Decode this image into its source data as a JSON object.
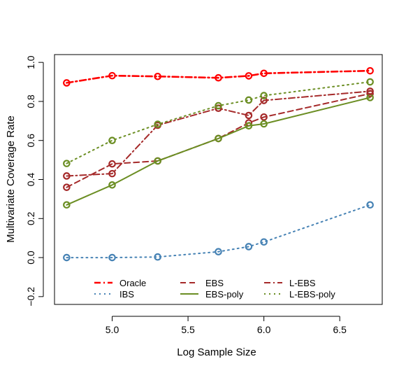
{
  "chart_data": {
    "type": "line",
    "title": "",
    "xlabel": "Log Sample Size",
    "ylabel": "Multivariate Coverage Rate",
    "xlim": [
      4.62,
      6.78
    ],
    "ylim": [
      -0.24,
      1.04
    ],
    "xticks": [
      5.0,
      5.5,
      6.0,
      6.5
    ],
    "xtick_labels": [
      "5.0",
      "5.5",
      "6.0",
      "6.5"
    ],
    "yticks": [
      -0.2,
      0.0,
      0.2,
      0.4,
      0.6,
      0.8,
      1.0
    ],
    "ytick_labels": [
      "−0.2",
      "0.0",
      "0.2",
      "0.4",
      "0.6",
      "0.8",
      "1.0"
    ],
    "x": [
      4.7,
      5.0,
      5.3,
      5.7,
      5.9,
      6.0,
      6.7
    ],
    "grid": false,
    "legend_position": "bottom",
    "series": [
      {
        "name": "Oracle",
        "color": "#ff0000",
        "dash": "dashdot",
        "width": 2.6,
        "values": [
          0.895,
          0.932,
          0.928,
          0.921,
          0.931,
          0.944,
          0.957
        ]
      },
      {
        "name": "IBS",
        "color": "#4682b4",
        "dash": "dotted",
        "width": 2,
        "values": [
          0.0,
          0.0,
          0.003,
          0.03,
          0.056,
          0.08,
          0.27
        ]
      },
      {
        "name": "EBS",
        "color": "#a52a2a",
        "dash": "dashed",
        "width": 2,
        "values": [
          0.36,
          0.48,
          0.495,
          0.61,
          0.69,
          0.72,
          0.84
        ]
      },
      {
        "name": "EBS-poly",
        "color": "#6b8e23",
        "dash": "solid",
        "width": 2,
        "values": [
          0.27,
          0.372,
          0.495,
          0.61,
          0.675,
          0.685,
          0.82
        ]
      },
      {
        "name": "L-EBS",
        "color": "#a52a2a",
        "dash": "dashdot",
        "width": 2,
        "values": [
          0.418,
          0.43,
          0.678,
          0.765,
          0.728,
          0.805,
          0.852
        ]
      },
      {
        "name": "L-EBS-poly",
        "color": "#6b8e23",
        "dash": "dotted",
        "width": 2,
        "values": [
          0.482,
          0.6,
          0.683,
          0.778,
          0.807,
          0.83,
          0.9
        ]
      }
    ]
  }
}
